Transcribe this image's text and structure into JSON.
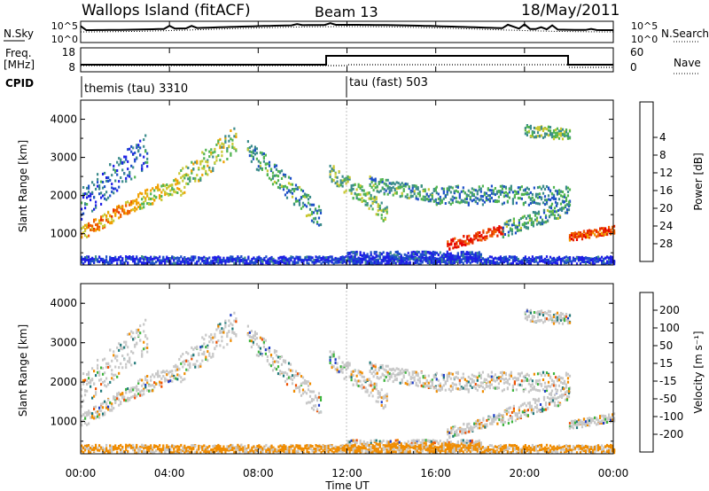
{
  "header": {
    "title": "Wallops Island (fitACF)",
    "beam": "Beam 13",
    "date": "18/May/2011"
  },
  "meta_panel": {
    "nsky_label": "N.Sky",
    "nsearch_label": "N.Search",
    "freq_label": "Freq.",
    "freq_unit": "[MHz]",
    "nave_label": "Nave",
    "cpid_label": "CPID",
    "noise_ticks": [
      "10^5",
      "10^0"
    ],
    "freq_ticks": [
      "18",
      "8"
    ],
    "nave_ticks": [
      "60",
      "0"
    ],
    "cpid_segments": [
      {
        "label": "themis (tau) 3310",
        "start_hour": 0
      },
      {
        "label": "tau (fast) 503",
        "start_hour": 12
      }
    ]
  },
  "chart_data": [
    {
      "type": "heatmap",
      "name": "Power",
      "ylabel": "Slant Range [km]",
      "xlabel": "",
      "ylim": [
        180,
        4500
      ],
      "xlim": [
        0,
        24
      ],
      "y_ticks": [
        "1000",
        "2000",
        "3000",
        "4000"
      ],
      "colorbar": {
        "label": "Power [dB]",
        "ticks": [
          "4",
          "8",
          "12",
          "16",
          "20",
          "24",
          "28"
        ],
        "colors": [
          "#1e1ee6",
          "#1e50c8",
          "#3c8c8c",
          "#50b450",
          "#c8c832",
          "#f0a000",
          "#f06000",
          "#e62800",
          "#e60000"
        ]
      },
      "features": [
        {
          "hour_start": 0.0,
          "hour_end": 2.0,
          "range_start": 1000,
          "range_end": 2100,
          "typical_db": 20
        },
        {
          "hour_start": 4.5,
          "hour_end": 7.0,
          "range_start": 2500,
          "range_end": 3700,
          "typical_db": 16
        },
        {
          "hour_start": 17.0,
          "hour_end": 19.0,
          "range_start": 600,
          "range_end": 1200,
          "typical_db": 28
        },
        {
          "hour_start": 22.0,
          "hour_end": 24.0,
          "range_start": 800,
          "range_end": 1100,
          "typical_db": 24
        }
      ]
    },
    {
      "type": "heatmap",
      "name": "Velocity",
      "ylabel": "Slant Range [km]",
      "xlabel": "Time UT",
      "ylim": [
        180,
        4500
      ],
      "xlim": [
        0,
        24
      ],
      "y_ticks": [
        "1000",
        "2000",
        "3000",
        "4000"
      ],
      "x_ticks": [
        "00:00",
        "04:00",
        "08:00",
        "12:00",
        "16:00",
        "20:00",
        "00:00"
      ],
      "colorbar": {
        "label": "Velocity [m s⁻¹]",
        "ticks": [
          "200",
          "100",
          "50",
          "15",
          "-15",
          "-50",
          "-100",
          "-200"
        ],
        "colors": [
          "#1e3cc8",
          "#1e7878",
          "#3cb43c",
          "#96dc64",
          "#c8c8c8",
          "#f0c864",
          "#f08c00",
          "#f05000",
          "#e60000"
        ]
      }
    }
  ]
}
